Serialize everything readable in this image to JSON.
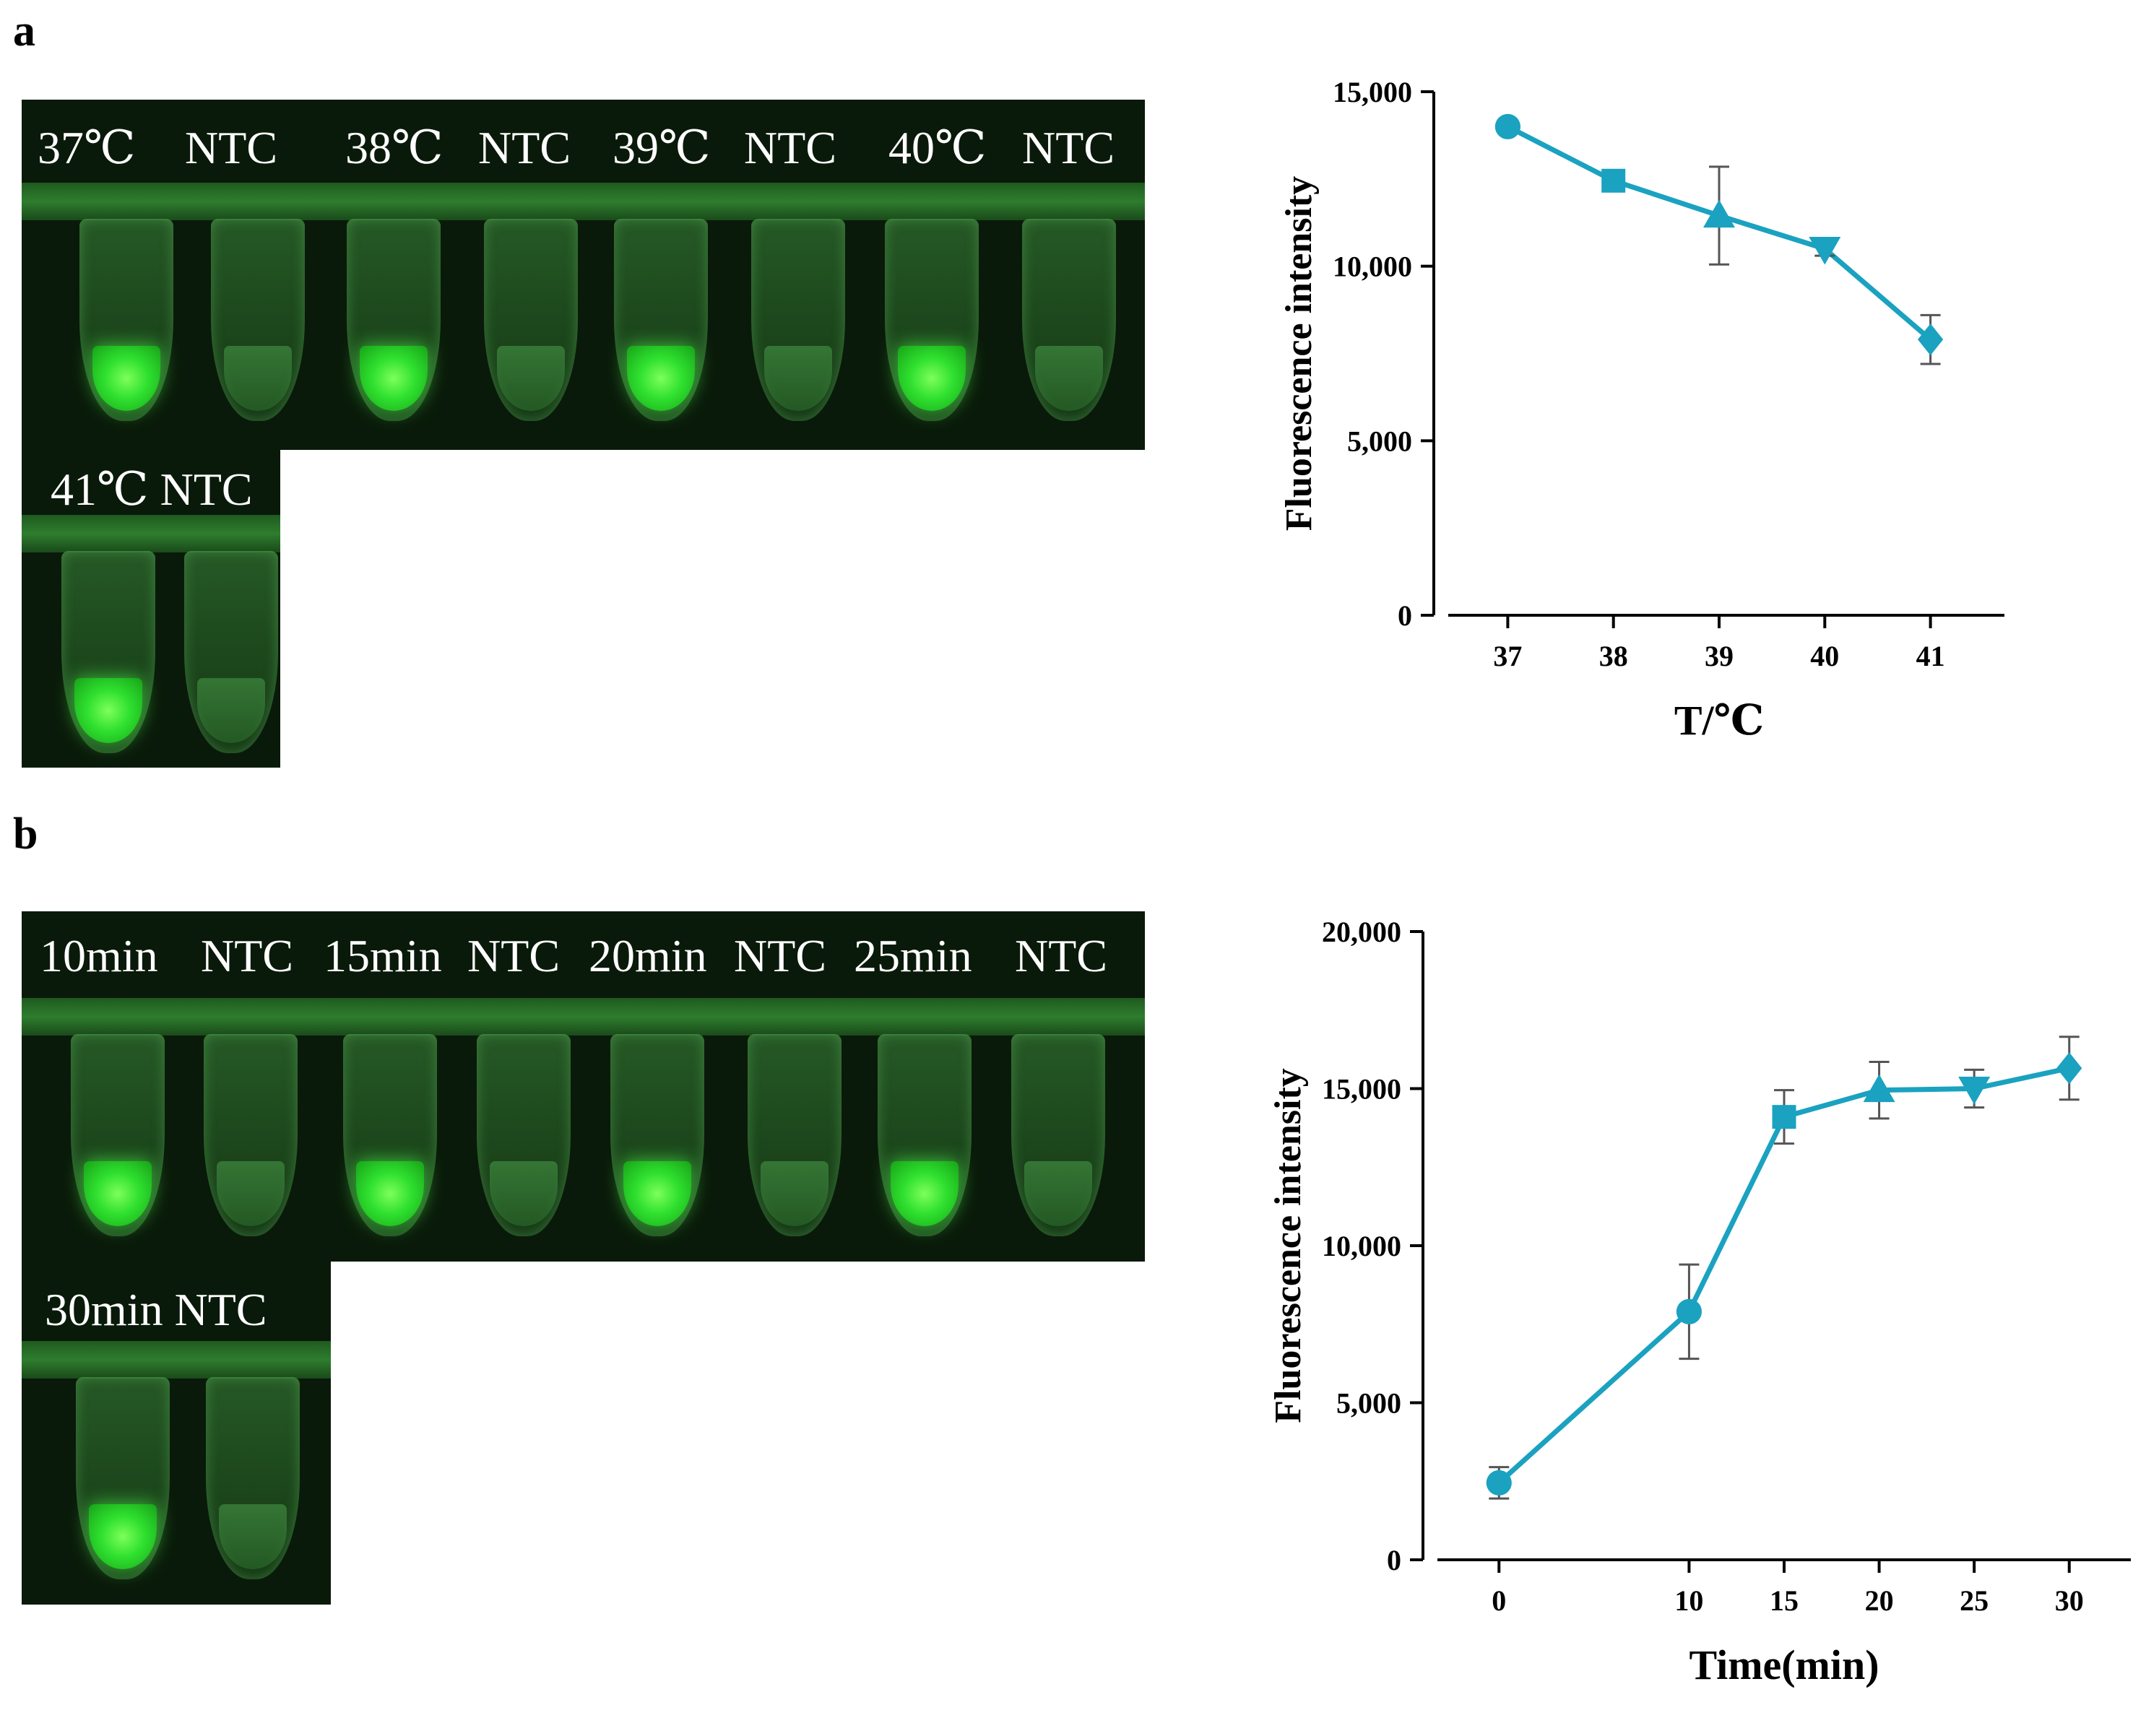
{
  "panel_a": {
    "letter": "a",
    "gel_labels_row1": [
      "37℃",
      "NTC",
      "38℃",
      "NTC",
      "39℃",
      "NTC",
      "40℃",
      "NTC"
    ],
    "gel_labels_row2": [
      "41℃ NTC"
    ]
  },
  "panel_b": {
    "letter": "b",
    "gel_labels_row1": [
      "10min",
      "NTC",
      "15min",
      "NTC",
      "20min",
      "NTC",
      "25min",
      "NTC"
    ],
    "gel_labels_row2": [
      "30min NTC"
    ]
  },
  "colors": {
    "series": "#1aa2c0",
    "error_bar": "#555555",
    "axis": "#000000",
    "gel_bg": "#0a1a0a",
    "glow": "#2fe02f"
  },
  "chart_data": [
    {
      "type": "line",
      "title": "",
      "xlabel": "T/℃",
      "ylabel": "Fluorescence intensity",
      "x": [
        37,
        38,
        39,
        40,
        41
      ],
      "x_tick_labels": [
        "37",
        "38",
        "39",
        "40",
        "41"
      ],
      "values": [
        14000,
        12450,
        11450,
        10500,
        7900
      ],
      "errors": [
        150,
        150,
        1400,
        200,
        700
      ],
      "markers": [
        "circle",
        "square",
        "triangle-up",
        "triangle-down",
        "diamond"
      ],
      "xlim": [
        36.3,
        41.7
      ],
      "ylim": [
        0,
        15000
      ],
      "y_ticks": [
        0,
        5000,
        10000,
        15000
      ],
      "y_tick_labels": [
        "0",
        "5,000",
        "10,000",
        "15,000"
      ]
    },
    {
      "type": "line",
      "title": "",
      "xlabel": "Time(min)",
      "ylabel": "Fluorescence intensity",
      "x": [
        0,
        10,
        15,
        20,
        25,
        30
      ],
      "x_tick_labels": [
        "0",
        "10",
        "15",
        "20",
        "25",
        "30"
      ],
      "values": [
        2450,
        7900,
        14100,
        14950,
        15000,
        15650
      ],
      "errors": [
        500,
        1500,
        850,
        900,
        600,
        1000
      ],
      "markers": [
        "circle",
        "circle",
        "square",
        "triangle-up",
        "triangle-down",
        "diamond"
      ],
      "xlim": [
        -4,
        34
      ],
      "ylim": [
        0,
        20000
      ],
      "y_ticks": [
        0,
        5000,
        10000,
        15000,
        20000
      ],
      "y_tick_labels": [
        "0",
        "5,000",
        "10,000",
        "15,000",
        "20,000"
      ]
    }
  ]
}
